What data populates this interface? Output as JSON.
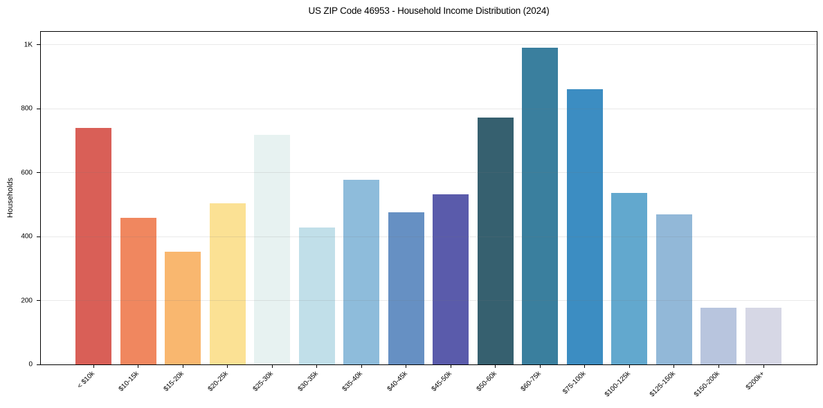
{
  "chart_data": {
    "type": "bar",
    "title": "US ZIP Code 46953 - Household Income Distribution (2024)",
    "xlabel": "",
    "ylabel": "Households",
    "categories": [
      "< $10k",
      "$10-15k",
      "$15-20k",
      "$20-25k",
      "$25-30k",
      "$30-35k",
      "$35-40k",
      "$40-45k",
      "$45-50k",
      "$50-60k",
      "$60-75k",
      "$75-100k",
      "$100-125k",
      "$125-150k",
      "$150-200k",
      "$200k+"
    ],
    "values": [
      740,
      458,
      353,
      503,
      717,
      428,
      578,
      476,
      532,
      773,
      991,
      860,
      537,
      469,
      177,
      177
    ],
    "bar_colors": [
      "#d95f57",
      "#f0875f",
      "#f9b76f",
      "#fbe194",
      "#e7f2f1",
      "#c1dfe9",
      "#8ebcdb",
      "#6690c3",
      "#5a5bab",
      "#36606f",
      "#3a7f9e",
      "#3c8dc2",
      "#62a8ce",
      "#92b8d8",
      "#b8c5de",
      "#d6d7e5"
    ],
    "ylim": [
      0,
      1040
    ],
    "yticks": [
      0,
      200,
      400,
      600,
      800,
      1000
    ],
    "ytick_labels": [
      "0",
      "200",
      "400",
      "600",
      "800",
      "1K"
    ],
    "grid": "horizontal",
    "legend": "none",
    "background_color": "#ffffff",
    "spine_color": "#000000"
  }
}
